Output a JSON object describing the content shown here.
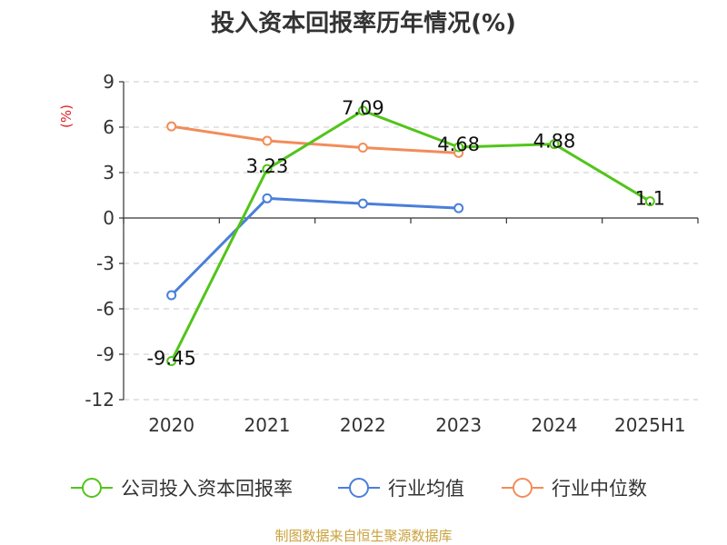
{
  "chart_data": {
    "type": "line",
    "title": "投入资本回报率历年情况(%)",
    "ylabel": "(%)",
    "categories": [
      "2020",
      "2021",
      "2022",
      "2023",
      "2024",
      "2025H1"
    ],
    "ylim": [
      -12,
      9
    ],
    "yticks": [
      "9",
      "6",
      "3",
      "0",
      "-3",
      "-6",
      "-9",
      "-12"
    ],
    "grid": true,
    "legend_position": "bottom",
    "series": [
      {
        "name": "公司投入资本回报率",
        "color": "#52c41a",
        "values": [
          -9.45,
          3.23,
          7.09,
          4.68,
          4.88,
          1.1
        ],
        "labels": [
          "-9.45",
          "3.23",
          "7.09",
          "4.68",
          "4.88",
          "1.1"
        ]
      },
      {
        "name": "行业均值",
        "color": "#4a7fd9",
        "values": [
          -5.1,
          1.3,
          0.95,
          0.65,
          null,
          null
        ]
      },
      {
        "name": "行业中位数",
        "color": "#f28c5a",
        "values": [
          6.05,
          5.1,
          4.65,
          4.3,
          null,
          null
        ]
      }
    ]
  },
  "source": "制图数据来自恒生聚源数据库"
}
